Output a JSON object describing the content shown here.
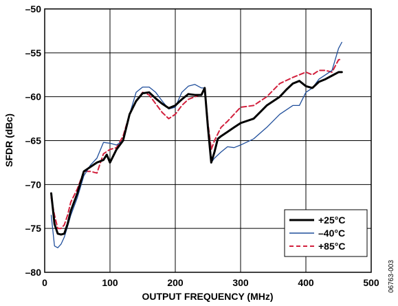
{
  "chart_data": {
    "type": "line",
    "xlabel": "OUTPUT FREQUENCY (MHz)",
    "ylabel": "SFDR (dBc)",
    "xlim": [
      0,
      500
    ],
    "ylim": [
      -80,
      -50
    ],
    "xticks": [
      0,
      100,
      200,
      300,
      400,
      500
    ],
    "yticks": [
      -50,
      -55,
      -60,
      -65,
      -70,
      -75,
      -80
    ],
    "xtick_labels": [
      "0",
      "100",
      "200",
      "300",
      "400",
      "500"
    ],
    "ytick_labels": [
      "–50",
      "–55",
      "–60",
      "–65",
      "–70",
      "–75",
      "–80"
    ],
    "grid": true,
    "legend_position": "bottom-right",
    "figure_id": "06763-003",
    "series": [
      {
        "name": "+25°C",
        "style": "solid-thick",
        "color": "#000000",
        "x": [
          10,
          15,
          20,
          25,
          30,
          35,
          40,
          50,
          60,
          70,
          80,
          90,
          95,
          100,
          110,
          120,
          130,
          140,
          150,
          160,
          170,
          180,
          190,
          200,
          210,
          220,
          230,
          240,
          245,
          250,
          255,
          260,
          265,
          270,
          280,
          290,
          300,
          320,
          340,
          360,
          370,
          380,
          390,
          400,
          410,
          420,
          430,
          440,
          450,
          455
        ],
        "y": [
          -71.0,
          -74.5,
          -75.6,
          -75.7,
          -75.6,
          -74.5,
          -73.0,
          -71.0,
          -68.5,
          -68.0,
          -67.5,
          -67.2,
          -66.6,
          -67.5,
          -66.0,
          -65.0,
          -62.0,
          -60.5,
          -59.6,
          -59.5,
          -60.2,
          -60.8,
          -61.3,
          -61.0,
          -60.3,
          -59.7,
          -59.8,
          -59.8,
          -59.0,
          -63.5,
          -67.5,
          -66.3,
          -64.8,
          -64.5,
          -64.0,
          -63.5,
          -63.0,
          -62.5,
          -61.0,
          -60.0,
          -59.2,
          -58.5,
          -58.2,
          -58.8,
          -59.0,
          -58.3,
          -58.0,
          -57.6,
          -57.2,
          -57.2
        ]
      },
      {
        "name": "–40°C",
        "style": "solid-thin",
        "color": "#1f4e9b",
        "x": [
          10,
          15,
          20,
          25,
          30,
          35,
          40,
          50,
          60,
          70,
          80,
          90,
          100,
          110,
          120,
          130,
          140,
          150,
          160,
          170,
          180,
          190,
          200,
          210,
          220,
          230,
          240,
          245,
          250,
          255,
          260,
          270,
          280,
          290,
          300,
          320,
          340,
          360,
          380,
          390,
          400,
          410,
          420,
          430,
          440,
          450,
          455
        ],
        "y": [
          -73.5,
          -77.0,
          -77.2,
          -76.8,
          -76.0,
          -74.8,
          -73.5,
          -71.5,
          -69.0,
          -67.8,
          -67.0,
          -65.2,
          -65.3,
          -65.5,
          -65.0,
          -62.0,
          -59.5,
          -58.9,
          -58.9,
          -59.5,
          -60.5,
          -61.4,
          -61.2,
          -59.5,
          -58.8,
          -58.6,
          -59.0,
          -59.0,
          -63.0,
          -67.5,
          -67.0,
          -66.3,
          -65.7,
          -65.8,
          -65.5,
          -64.8,
          -63.5,
          -62.0,
          -61.0,
          -61.0,
          -59.5,
          -59.0,
          -58.0,
          -57.5,
          -57.0,
          -54.5,
          -53.8
        ]
      },
      {
        "name": "+85°C",
        "style": "dashed",
        "color": "#d21f3c",
        "x": [
          10,
          15,
          20,
          25,
          30,
          35,
          40,
          50,
          60,
          70,
          80,
          90,
          100,
          110,
          120,
          130,
          140,
          150,
          160,
          170,
          180,
          190,
          200,
          210,
          220,
          230,
          240,
          245,
          250,
          255,
          260,
          270,
          280,
          290,
          300,
          320,
          340,
          360,
          380,
          390,
          400,
          410,
          420,
          430,
          440,
          450,
          455
        ],
        "y": [
          -71.5,
          -73.5,
          -75.0,
          -75.0,
          -74.6,
          -73.5,
          -72.0,
          -70.5,
          -68.5,
          -68.5,
          -68.7,
          -66.5,
          -66.0,
          -65.8,
          -64.5,
          -62.0,
          -60.5,
          -59.5,
          -59.8,
          -60.8,
          -61.8,
          -62.5,
          -62.0,
          -61.0,
          -60.3,
          -60.0,
          -59.7,
          -59.0,
          -63.0,
          -66.0,
          -65.0,
          -63.5,
          -62.8,
          -62.0,
          -61.2,
          -61.0,
          -60.0,
          -58.5,
          -57.8,
          -57.5,
          -57.2,
          -57.5,
          -57.0,
          -57.0,
          -57.2,
          -55.8,
          -55.7
        ]
      }
    ]
  }
}
